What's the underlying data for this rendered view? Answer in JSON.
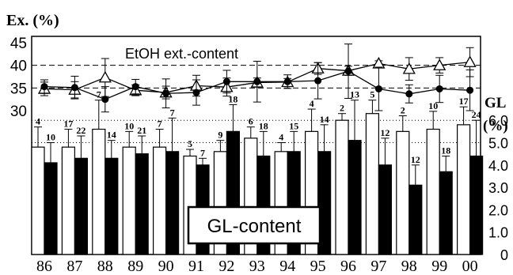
{
  "chart_data": {
    "type": "bar",
    "categories": [
      "86",
      "87",
      "88",
      "89",
      "90",
      "91",
      "92",
      "93",
      "94",
      "95",
      "96",
      "97",
      "98",
      "99",
      "00"
    ],
    "top_panel": {
      "type": "line",
      "ylabel": "Ex. (%)",
      "yticks": [
        "30",
        "35",
        "40",
        "45"
      ],
      "ylim": [
        30,
        45
      ],
      "dashed_lines": [
        35,
        40
      ],
      "annotation": "EtOH ext.-content",
      "series": [
        {
          "marker": "triangle-open",
          "values": [
            34.8,
            34.6,
            37.3,
            34.5,
            34.0,
            35.5,
            35.2,
            36.2,
            36.3,
            39.3,
            38.8,
            40.4,
            39.2,
            40.0,
            40.7
          ],
          "err": [
            1.5,
            1.8,
            4.2,
            1.2,
            1.4,
            2.3,
            2.0,
            1.0,
            0.8,
            1.3,
            1.0,
            0.6,
            2.5,
            1.7,
            3.2
          ]
        },
        {
          "marker": "circle-filled",
          "values": [
            35.3,
            35.1,
            32.5,
            35.3,
            33.8,
            34.0,
            36.4,
            36.4,
            36.4,
            36.6,
            38.7,
            34.8,
            33.7,
            34.8,
            34.5
          ],
          "err": [
            1.5,
            2.5,
            2.8,
            1.6,
            3.2,
            2.8,
            2.5,
            4.5,
            1.5,
            4.0,
            6.0,
            4.8,
            2.0,
            3.0,
            4.5
          ]
        }
      ]
    },
    "bottom_panel": {
      "type": "bar",
      "ylabel": "GL",
      "ylabel_unit": "(%)",
      "yticks": [
        "0",
        "1.0",
        "2.0",
        "3.0",
        "4.0",
        "5.0",
        "6.0"
      ],
      "ylim": [
        0,
        6.5
      ],
      "dotted_lines": [
        5.0,
        6.0
      ],
      "annotation": "GL-content",
      "series": [
        {
          "fill": "white",
          "values": [
            4.8,
            4.8,
            5.6,
            4.8,
            4.8,
            4.4,
            4.6,
            5.2,
            4.6,
            5.5,
            6.0,
            6.3,
            5.5,
            5.6,
            5.8
          ],
          "err": [
            0.9,
            0.8,
            1.3,
            0.7,
            0.8,
            0.3,
            0.5,
            0.5,
            0.4,
            1.0,
            0.3,
            0.6,
            0.7,
            0.8,
            0.8
          ],
          "labels": [
            "4",
            "17",
            "7",
            "10",
            "7",
            "5",
            "9",
            "6",
            "4",
            "4",
            "2",
            "5",
            "2",
            "10",
            "17"
          ]
        },
        {
          "fill": "black",
          "values": [
            4.1,
            4.3,
            4.3,
            4.5,
            4.6,
            4.0,
            5.5,
            4.4,
            4.6,
            4.6,
            5.1,
            4.0,
            3.1,
            3.7,
            4.4
          ],
          "err": [
            0.9,
            1.0,
            0.8,
            0.8,
            1.5,
            0.3,
            1.2,
            1.1,
            0.9,
            1.2,
            1.8,
            1.2,
            0.9,
            0.7,
            1.6
          ],
          "labels": [
            "10",
            "22",
            "14",
            "21",
            "7",
            "7",
            "18",
            "18",
            "15",
            "14",
            "13",
            "12",
            "12",
            "18",
            "24"
          ]
        }
      ]
    },
    "xlim_years": "86-00"
  }
}
